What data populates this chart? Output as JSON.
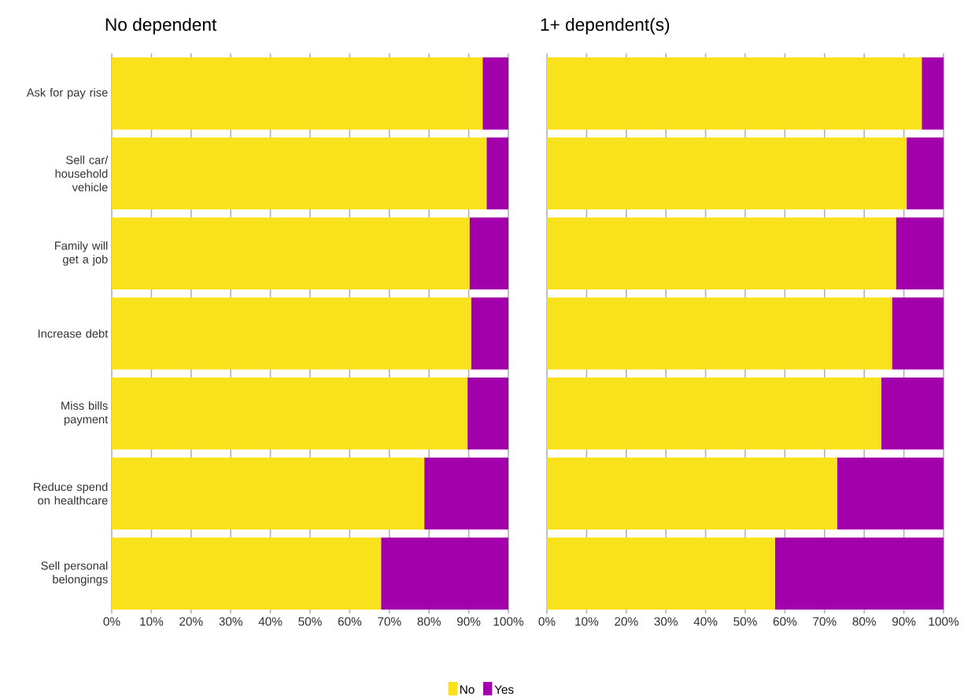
{
  "chart_data": [
    {
      "type": "bar",
      "orientation": "horizontal",
      "stacked": true,
      "title": "No dependent",
      "categories": [
        "Ask for pay rise",
        "Sell car/ household vehicle",
        "Family will get a job",
        "Increase debt",
        "Miss bills payment",
        "Reduce spend on healthcare",
        "Sell personal belongings"
      ],
      "series": [
        {
          "name": "No",
          "color": "#f9e11b",
          "values": [
            93.5,
            94.5,
            90.2,
            90.6,
            89.7,
            78.8,
            67.9
          ]
        },
        {
          "name": "Yes",
          "color": "#a100aa",
          "values": [
            6.5,
            5.5,
            9.8,
            9.4,
            10.3,
            21.2,
            32.1
          ]
        }
      ],
      "xlim": [
        0,
        100
      ],
      "xticks": [
        {
          "value": 0,
          "label": "0%"
        },
        {
          "value": 10,
          "label": "10%"
        },
        {
          "value": 20,
          "label": "20%"
        },
        {
          "value": 30,
          "label": "30%"
        },
        {
          "value": 40,
          "label": "40%"
        },
        {
          "value": 50,
          "label": "50%"
        },
        {
          "value": 60,
          "label": "60%"
        },
        {
          "value": 70,
          "label": "70%"
        },
        {
          "value": 80,
          "label": "80%"
        },
        {
          "value": 90,
          "label": "90%"
        },
        {
          "value": 100,
          "label": "100%"
        }
      ],
      "grid": "x",
      "legend": "bottom"
    },
    {
      "type": "bar",
      "orientation": "horizontal",
      "stacked": true,
      "title": "1+ dependent(s)",
      "categories": [
        null,
        null,
        null,
        null,
        null,
        null,
        null
      ],
      "series": [
        {
          "color": "#f9e11b",
          "values": [
            94.5,
            90.7,
            88.0,
            87.0,
            84.3,
            73.2,
            57.5
          ]
        },
        {
          "color": "#a100aa",
          "values": [
            5.5,
            9.3,
            12.0,
            13.0,
            15.7,
            26.8,
            42.5
          ]
        }
      ],
      "xlim": [
        0,
        100
      ],
      "xticks": [
        {
          "value": 0,
          "label": "0%"
        },
        {
          "value": 10,
          "label": "10%"
        },
        {
          "value": 20,
          "label": "20%"
        },
        {
          "value": 30,
          "label": "30%"
        },
        {
          "value": 40,
          "label": "40%"
        },
        {
          "value": 50,
          "label": "50%"
        },
        {
          "value": 60,
          "label": "60%"
        },
        {
          "value": 70,
          "label": "70%"
        },
        {
          "value": 80,
          "label": "80%"
        },
        {
          "value": 90,
          "label": "90%"
        },
        {
          "value": 100,
          "label": "100%"
        }
      ],
      "grid": "x",
      "tick_labels": "x"
    }
  ]
}
